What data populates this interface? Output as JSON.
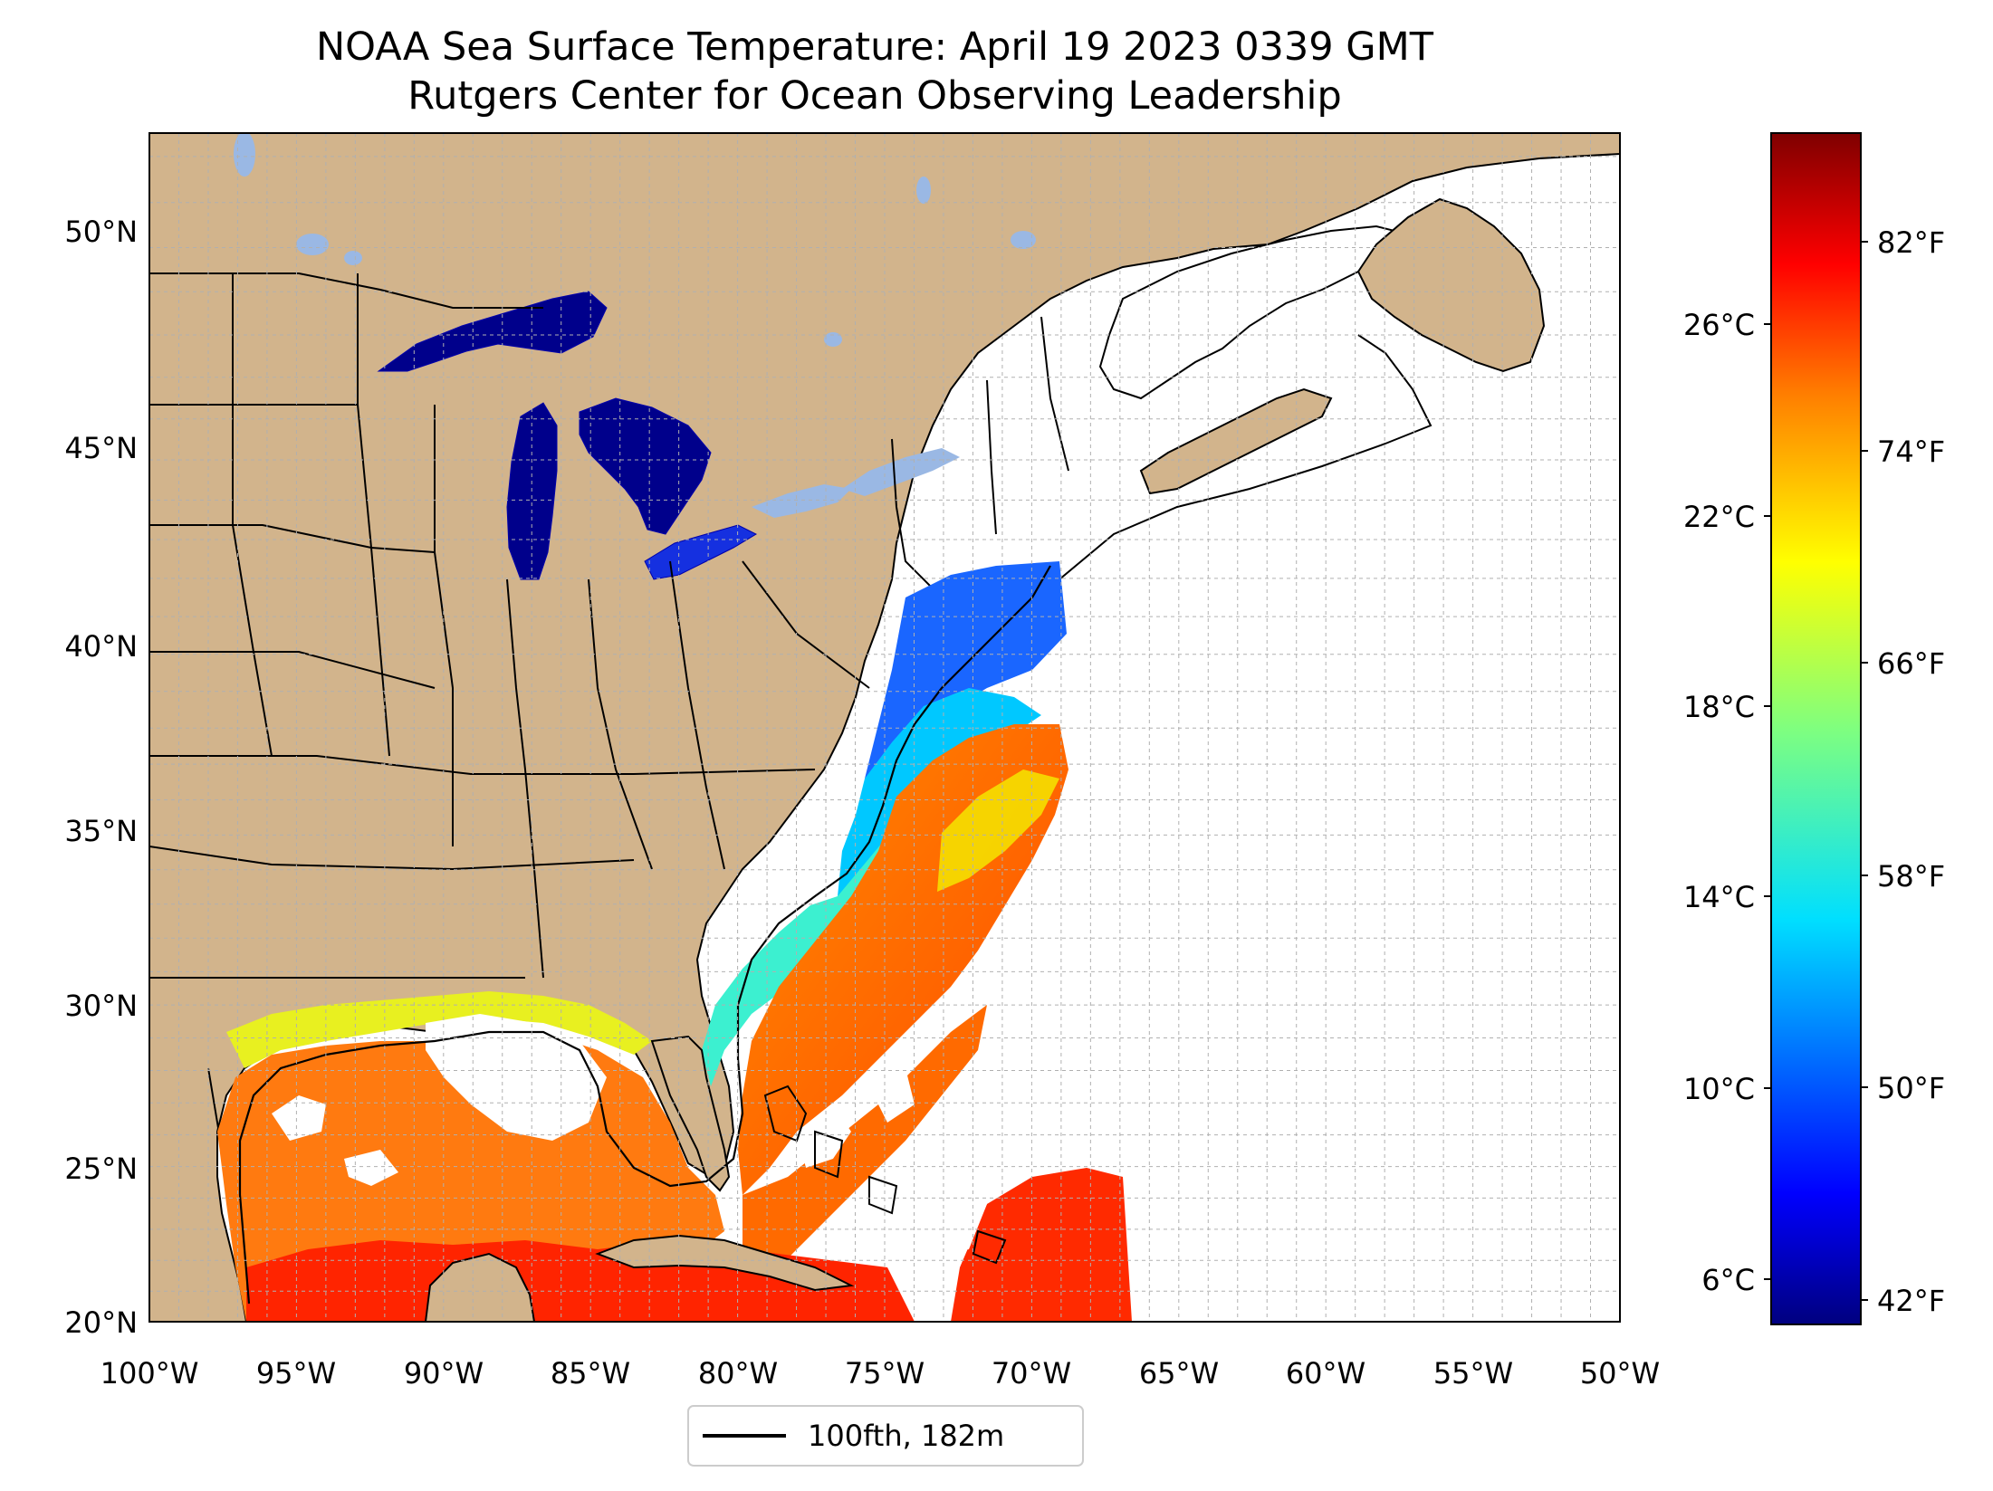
{
  "map": {
    "title_line1": "NOAA Sea Surface Temperature: April 19 2023 0339 GMT",
    "title_line2": "Rutgers Center for Ocean Observing Leadership",
    "lon_ticks": [
      "100°W",
      "95°W",
      "90°W",
      "85°W",
      "80°W",
      "75°W",
      "70°W",
      "65°W",
      "60°W",
      "55°W",
      "50°W"
    ],
    "lat_ticks": [
      "20°N",
      "25°N",
      "30°N",
      "35°N",
      "40°N",
      "45°N",
      "50°N"
    ],
    "extent": {
      "lon_min": -100,
      "lon_max": -50,
      "lat_min": 20,
      "lat_max": 52.5
    },
    "land_color": "#d2b48c",
    "lake_ice_color": "#9ab8e4",
    "legend": {
      "label": "100fth, 182m"
    }
  },
  "colorbar": {
    "celsius_ticks": [
      "6°C",
      "10°C",
      "14°C",
      "18°C",
      "22°C",
      "26°C"
    ],
    "fahrenheit_ticks": [
      "42°F",
      "50°F",
      "58°F",
      "66°F",
      "74°F",
      "82°F"
    ],
    "colormap": "jet",
    "colors": [
      "#00007f",
      "#0000ff",
      "#007fff",
      "#00ffff",
      "#7fff7f",
      "#ffff00",
      "#ff7f00",
      "#ff0000",
      "#7f0000"
    ]
  }
}
